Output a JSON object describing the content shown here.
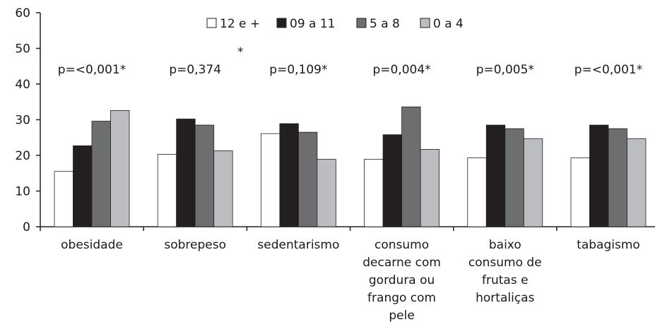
{
  "chart_data": {
    "type": "bar",
    "title": "",
    "xlabel": "",
    "ylabel": "",
    "ylim": [
      0,
      60
    ],
    "yticks": [
      0,
      10,
      20,
      30,
      40,
      50,
      60
    ],
    "grid": false,
    "legend_position": "top-center",
    "categories": [
      [
        "obesidade"
      ],
      [
        "sobrepeso"
      ],
      [
        "sedentarismo"
      ],
      [
        "consumo",
        "decarne com",
        "gordura ou",
        "frango com",
        "pele"
      ],
      [
        "baixo",
        "consumo de",
        "frutas e",
        "hortaliças"
      ],
      [
        "tabagismo"
      ]
    ],
    "pvalues": [
      "p=<0,001*",
      "p=0,374",
      "p=0,109*",
      "p=0,004*",
      "p=0,005*",
      "p=<0,001*"
    ],
    "pvalue_extra": [
      "",
      "*",
      "",
      "",
      "",
      ""
    ],
    "series": [
      {
        "name": "12 e +",
        "color": "#ffffff",
        "values": [
          15.5,
          20.3,
          26.1,
          18.9,
          19.3,
          19.3
        ]
      },
      {
        "name": "09 a 11",
        "color": "#231f20",
        "values": [
          22.7,
          30.2,
          28.9,
          25.8,
          28.5,
          28.5
        ]
      },
      {
        "name": "5 a 8",
        "color": "#6d6e70",
        "values": [
          29.6,
          28.5,
          26.5,
          33.6,
          27.5,
          27.5
        ]
      },
      {
        "name": "0 a 4",
        "color": "#bcbdc0",
        "values": [
          32.6,
          21.3,
          18.9,
          21.7,
          24.7,
          24.7
        ]
      }
    ]
  }
}
